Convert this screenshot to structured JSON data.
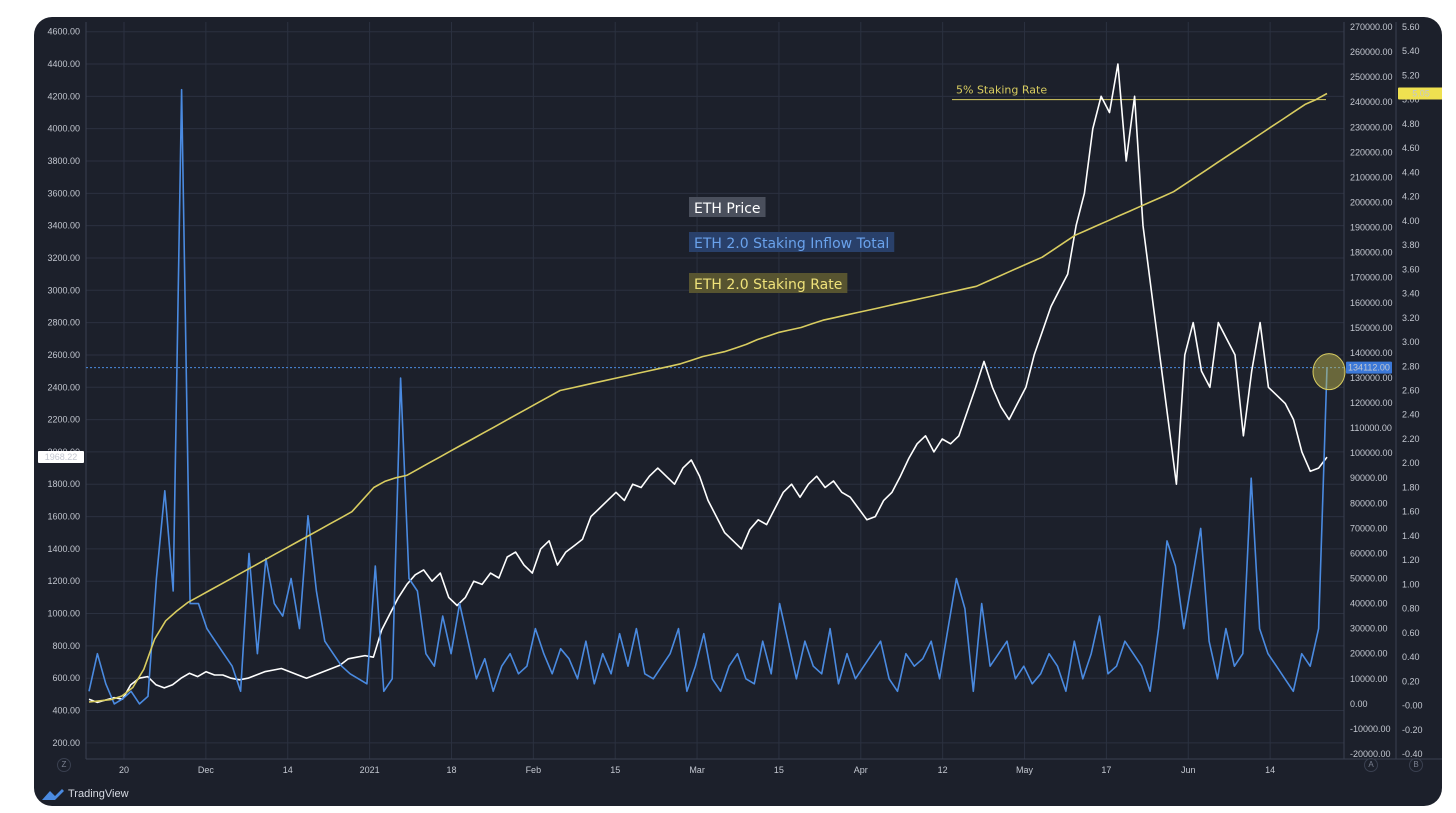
{
  "watermark": "TradingView",
  "corner_buttons": {
    "left": "Z",
    "a": "A",
    "b": "B"
  },
  "colors": {
    "background": "#1c202b",
    "grid": "#2b3140",
    "price_line": "#ffffff",
    "inflow_line": "#4a8ae0",
    "rate_line": "#d8cc60",
    "price_badge_bg": "#ffffff",
    "inflow_badge_bg": "#3b78d8",
    "rate_badge_bg": "#efe150"
  },
  "chart_data": {
    "type": "line",
    "x_tick_labels": [
      "20",
      "Dec",
      "14",
      "2021",
      "18",
      "Feb",
      "15",
      "Mar",
      "15",
      "Apr",
      "12",
      "May",
      "17",
      "Jun",
      "14"
    ],
    "left_axis": {
      "ylim": [
        100,
        4660
      ],
      "tick_labels": [
        "200.00",
        "400.00",
        "600.00",
        "800.00",
        "1000.00",
        "1200.00",
        "1400.00",
        "1600.00",
        "1800.00",
        "2000.00",
        "2200.00",
        "2400.00",
        "2600.00",
        "2800.00",
        "3000.00",
        "3200.00",
        "3400.00",
        "3600.00",
        "3800.00",
        "4000.00",
        "4200.00",
        "4400.00",
        "4600.00"
      ]
    },
    "inflow_axis": {
      "ylim": [
        -22000,
        272000
      ],
      "tick_labels": [
        "-20000.00",
        "-10000.00",
        "0.00",
        "10000.00",
        "20000.00",
        "30000.00",
        "40000.00",
        "50000.00",
        "60000.00",
        "70000.00",
        "80000.00",
        "90000.00",
        "100000.00",
        "110000.00",
        "120000.00",
        "130000.00",
        "140000.00",
        "150000.00",
        "160000.00",
        "170000.00",
        "180000.00",
        "190000.00",
        "200000.00",
        "210000.00",
        "220000.00",
        "230000.00",
        "240000.00",
        "250000.00",
        "260000.00",
        "270000.00"
      ]
    },
    "rate_axis": {
      "ylim": [
        -0.44,
        5.64
      ],
      "tick_labels": [
        "-0.40",
        "-0.20",
        "-0.00",
        "0.20",
        "0.40",
        "0.60",
        "0.80",
        "1.00",
        "1.20",
        "1.40",
        "1.60",
        "1.80",
        "2.00",
        "2.20",
        "2.40",
        "2.60",
        "2.80",
        "3.00",
        "3.20",
        "3.40",
        "3.60",
        "3.80",
        "4.00",
        "4.20",
        "4.40",
        "4.60",
        "4.80",
        "5.00",
        "5.20",
        "5.40",
        "5.60"
      ]
    },
    "legend": [
      {
        "name": "ETH Price",
        "color": "#ffffff",
        "bg": "#4a4f5c"
      },
      {
        "name": "ETH 2.0 Staking Inflow Total",
        "color": "#6aa2ec",
        "bg": "#29406a"
      },
      {
        "name": "ETH 2.0 Staking Rate",
        "color": "#efe27a",
        "bg": "#575430"
      }
    ],
    "annotation": {
      "text": "5% Staking Rate",
      "value": 5.0
    },
    "badges": {
      "price": "1968.22",
      "inflow": "134112.00",
      "rate": "5.05"
    },
    "crosshair_inflow": 134112,
    "series": [
      {
        "name": "ETH Price",
        "axis": "left",
        "color": "#ffffff",
        "values": [
          470,
          450,
          465,
          480,
          470,
          560,
          600,
          610,
          560,
          540,
          560,
          600,
          630,
          610,
          640,
          620,
          620,
          600,
          590,
          600,
          620,
          640,
          650,
          660,
          640,
          620,
          600,
          620,
          640,
          660,
          680,
          720,
          730,
          740,
          730,
          900,
          1000,
          1100,
          1180,
          1240,
          1270,
          1200,
          1250,
          1100,
          1050,
          1100,
          1200,
          1180,
          1250,
          1220,
          1350,
          1380,
          1300,
          1250,
          1400,
          1450,
          1300,
          1380,
          1420,
          1460,
          1600,
          1650,
          1700,
          1750,
          1700,
          1800,
          1780,
          1850,
          1900,
          1850,
          1800,
          1900,
          1950,
          1850,
          1700,
          1600,
          1500,
          1450,
          1400,
          1520,
          1580,
          1550,
          1650,
          1750,
          1800,
          1720,
          1800,
          1850,
          1780,
          1820,
          1750,
          1720,
          1650,
          1580,
          1600,
          1700,
          1750,
          1850,
          1960,
          2050,
          2100,
          2000,
          2080,
          2050,
          2100,
          2250,
          2400,
          2560,
          2400,
          2280,
          2200,
          2300,
          2400,
          2600,
          2750,
          2900,
          3000,
          3100,
          3400,
          3600,
          4000,
          4200,
          4100,
          4400,
          3800,
          4200,
          3400,
          3000,
          2600,
          2200,
          1800,
          2600,
          2800,
          2500,
          2400,
          2800,
          2700,
          2600,
          2100,
          2500,
          2800,
          2400,
          2350,
          2300,
          2200,
          2000,
          1880,
          1900,
          1968
        ]
      },
      {
        "name": "ETH 2.0 Staking Inflow Total",
        "axis": "inflow",
        "color": "#4a8ae0",
        "values": [
          5000,
          20000,
          8000,
          0,
          2000,
          5000,
          0,
          3000,
          50000,
          85000,
          45000,
          245000,
          40000,
          40000,
          30000,
          25000,
          20000,
          15000,
          5000,
          60000,
          20000,
          58000,
          40000,
          35000,
          50000,
          30000,
          75000,
          45000,
          25000,
          20000,
          15000,
          12000,
          10000,
          8000,
          55000,
          5000,
          10000,
          130000,
          50000,
          45000,
          20000,
          15000,
          35000,
          20000,
          40000,
          25000,
          10000,
          18000,
          5000,
          15000,
          20000,
          12000,
          15000,
          30000,
          20000,
          12000,
          22000,
          18000,
          10000,
          25000,
          8000,
          20000,
          12000,
          28000,
          15000,
          30000,
          12000,
          10000,
          15000,
          20000,
          30000,
          5000,
          15000,
          28000,
          10000,
          5000,
          15000,
          20000,
          10000,
          8000,
          25000,
          12000,
          40000,
          25000,
          10000,
          25000,
          15000,
          12000,
          30000,
          8000,
          20000,
          10000,
          15000,
          20000,
          25000,
          10000,
          5000,
          20000,
          15000,
          18000,
          25000,
          10000,
          30000,
          50000,
          38000,
          5000,
          40000,
          15000,
          20000,
          25000,
          10000,
          15000,
          8000,
          12000,
          20000,
          15000,
          5000,
          25000,
          10000,
          20000,
          35000,
          12000,
          15000,
          25000,
          20000,
          15000,
          5000,
          30000,
          65000,
          55000,
          30000,
          50000,
          70000,
          25000,
          10000,
          30000,
          15000,
          20000,
          90000,
          30000,
          20000,
          15000,
          10000,
          5000,
          20000,
          15000,
          30000,
          134112
        ]
      },
      {
        "name": "ETH 2.0 Staking Rate",
        "axis": "rate",
        "color": "#d8cc60",
        "values": [
          0.03,
          0.04,
          0.05,
          0.08,
          0.15,
          0.3,
          0.55,
          0.7,
          0.78,
          0.85,
          0.9,
          0.95,
          1.0,
          1.05,
          1.1,
          1.15,
          1.2,
          1.25,
          1.3,
          1.35,
          1.4,
          1.45,
          1.5,
          1.55,
          1.6,
          1.7,
          1.8,
          1.85,
          1.88,
          1.9,
          1.95,
          2.0,
          2.05,
          2.1,
          2.15,
          2.2,
          2.25,
          2.3,
          2.35,
          2.4,
          2.45,
          2.5,
          2.55,
          2.6,
          2.62,
          2.64,
          2.66,
          2.68,
          2.7,
          2.72,
          2.74,
          2.76,
          2.78,
          2.8,
          2.82,
          2.85,
          2.88,
          2.9,
          2.92,
          2.95,
          2.98,
          3.02,
          3.05,
          3.08,
          3.1,
          3.12,
          3.15,
          3.18,
          3.2,
          3.22,
          3.24,
          3.26,
          3.28,
          3.3,
          3.32,
          3.34,
          3.36,
          3.38,
          3.4,
          3.42,
          3.44,
          3.46,
          3.5,
          3.54,
          3.58,
          3.62,
          3.66,
          3.7,
          3.76,
          3.82,
          3.88,
          3.92,
          3.96,
          4.0,
          4.04,
          4.08,
          4.12,
          4.16,
          4.2,
          4.24,
          4.3,
          4.36,
          4.42,
          4.48,
          4.54,
          4.6,
          4.66,
          4.72,
          4.78,
          4.84,
          4.9,
          4.96,
          5.0,
          5.05
        ]
      }
    ]
  }
}
